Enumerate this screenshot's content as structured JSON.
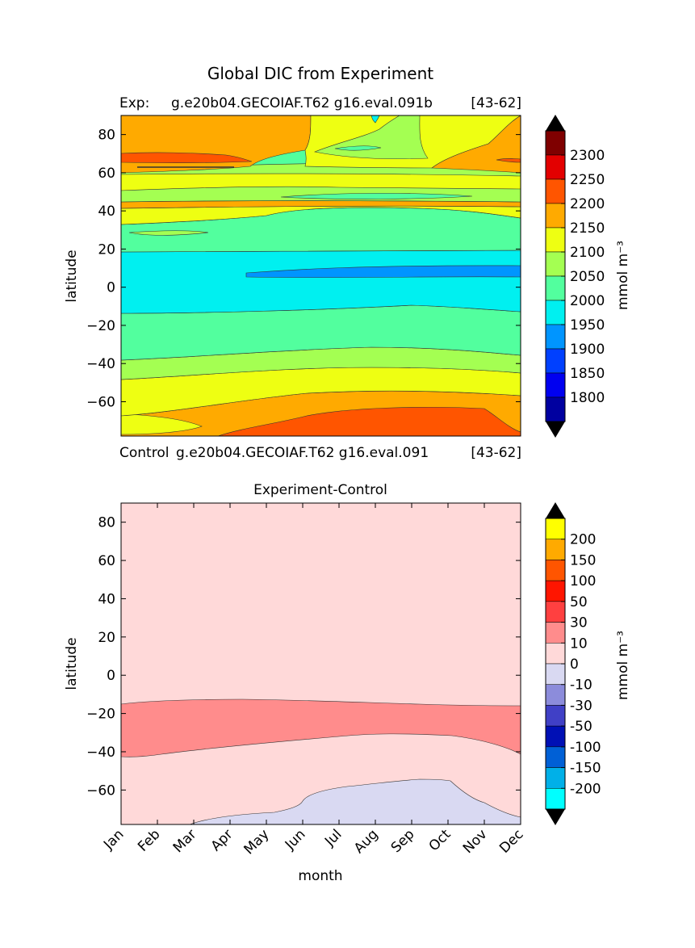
{
  "figure_title": "Global DIC from Experiment",
  "chart_data": [
    {
      "type": "heatmap",
      "subtitle_left": "Exp:",
      "subtitle_mid": "g.e20b04.GECOIAF.T62 g16.eval.091b",
      "subtitle_right": "[43-62]",
      "xlabel": "",
      "ylabel": "latitude",
      "ylim": [
        -78,
        90
      ],
      "yticks": [
        "80",
        "60",
        "40",
        "20",
        "0",
        "−20",
        "−40",
        "−60"
      ],
      "colorbar": {
        "label": "mmol m⁻³",
        "ticks": [
          "2300",
          "2250",
          "2200",
          "2150",
          "2100",
          "2050",
          "2000",
          "1950",
          "1900",
          "1850",
          "1800"
        ],
        "colors": [
          "#7f0000",
          "#e30000",
          "#ff5500",
          "#ffaa00",
          "#eeff12",
          "#a4ff52",
          "#52ff9e",
          "#00f0f0",
          "#0095ff",
          "#0040ff",
          "#0000f0",
          "#0000a0"
        ],
        "extend": "both"
      },
      "bands": [
        {
          "lat": [
            -78,
            -68
          ],
          "value": 2175,
          "color": "#ff5500"
        },
        {
          "lat": [
            -68,
            -55
          ],
          "value": 2150,
          "color": "#ffaa00"
        },
        {
          "lat": [
            -55,
            -45
          ],
          "value": 2110,
          "color": "#eeff12"
        },
        {
          "lat": [
            -45,
            -35
          ],
          "value": 2075,
          "color": "#a4ff52"
        },
        {
          "lat": [
            -35,
            -12
          ],
          "value": 2025,
          "color": "#52ff9e"
        },
        {
          "lat": [
            -12,
            18
          ],
          "value": 1990,
          "color": "#00f0f0"
        },
        {
          "lat": [
            5,
            10
          ],
          "value": 1960,
          "color": "#0095ff"
        },
        {
          "lat": [
            18,
            38
          ],
          "value": 2040,
          "color": "#52ff9e"
        },
        {
          "lat": [
            38,
            42
          ],
          "value": 2120,
          "color": "#eeff12"
        },
        {
          "lat": [
            42,
            45
          ],
          "value": 2170,
          "color": "#ffaa00"
        },
        {
          "lat": [
            45,
            60
          ],
          "value": 2080,
          "color": "#a4ff52"
        },
        {
          "lat": [
            60,
            66
          ],
          "value": 2160,
          "color": "#ffaa00"
        },
        {
          "lat": [
            66,
            90
          ],
          "value": 2150,
          "color": "#ffaa00"
        }
      ]
    },
    {
      "type": "heatmap",
      "subtitle_left": "Control",
      "subtitle_mid": "g.e20b04.GECOIAF.T62 g16.eval.091",
      "subtitle_right": "[43-62]",
      "title": "Experiment-Control",
      "xlabel": "month",
      "ylabel": "latitude",
      "categories": [
        "Jan",
        "Feb",
        "Mar",
        "Apr",
        "May",
        "Jun",
        "Jul",
        "Aug",
        "Sep",
        "Oct",
        "Nov",
        "Dec"
      ],
      "ylim": [
        -78,
        90
      ],
      "yticks": [
        "80",
        "60",
        "40",
        "20",
        "0",
        "−20",
        "−40",
        "−60"
      ],
      "colorbar": {
        "label": "mmol m⁻³",
        "ticks": [
          "200",
          "150",
          "100",
          "50",
          "30",
          "10",
          "0",
          "-10",
          "-30",
          "-50",
          "-100",
          "-150",
          "-200"
        ],
        "colors": [
          "#ffff00",
          "#ffaa00",
          "#ff5500",
          "#ff1500",
          "#ff4040",
          "#ff8c8c",
          "#ffd9d9",
          "#d9d9f2",
          "#8c8cdb",
          "#4040c6",
          "#0010b5",
          "#0060d6",
          "#00b0e8",
          "#00ffff"
        ],
        "extend": "both"
      },
      "bands": [
        {
          "lat": [
            -78,
            -60
          ],
          "value": -5,
          "color": "#d9d9f2"
        },
        {
          "lat": [
            -38,
            -15
          ],
          "value": 15,
          "color": "#ff8c8c"
        },
        {
          "lat": [
            -15,
            90
          ],
          "value": 5,
          "color": "#ffd9d9"
        }
      ]
    }
  ]
}
